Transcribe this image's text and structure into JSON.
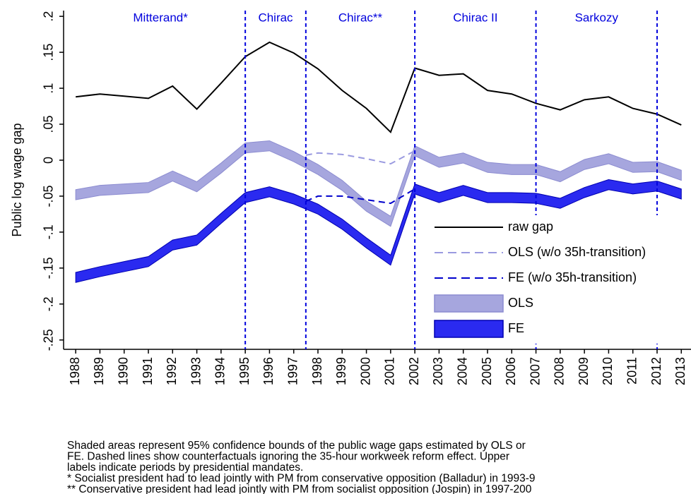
{
  "chart_data": {
    "type": "line",
    "y_label": "Public log wage gap",
    "x": [
      1988,
      1989,
      1990,
      1991,
      1992,
      1993,
      1994,
      1995,
      1996,
      1997,
      1998,
      1999,
      2000,
      2001,
      2002,
      2003,
      2004,
      2005,
      2006,
      2007,
      2008,
      2009,
      2010,
      2011,
      2012,
      2013
    ],
    "xlim": [
      1987.5,
      2013.4
    ],
    "xticks": [
      1988,
      1989,
      1990,
      1991,
      1992,
      1993,
      1994,
      1995,
      1996,
      1997,
      1998,
      1999,
      2000,
      2001,
      2002,
      2003,
      2004,
      2005,
      2006,
      2007,
      2008,
      2009,
      2010,
      2011,
      2012,
      2013
    ],
    "ylim": [
      -0.263,
      0.208
    ],
    "yticks": [
      {
        "value": 0.2,
        "label": ".2"
      },
      {
        "value": 0.15,
        "label": ".15"
      },
      {
        "value": 0.1,
        "label": ".1"
      },
      {
        "value": 0.05,
        "label": ".05"
      },
      0,
      {
        "value": -0.05,
        "label": "-.05"
      },
      {
        "value": -0.1,
        "label": "-.1"
      },
      {
        "value": -0.15,
        "label": "-.15"
      },
      {
        "value": -0.2,
        "label": "-.2"
      },
      {
        "value": -0.25,
        "label": "-.25"
      }
    ],
    "mandate_lines": [
      1995,
      1997.5,
      2002,
      2007,
      2012
    ],
    "mandates": [
      "Mitterand*",
      "Chirac",
      "Chirac**",
      "Chirac II",
      "Sarkozy"
    ],
    "mandate_color": "#0000dd",
    "series": [
      {
        "name": "OLS",
        "style": "band",
        "color": "#a6a6de",
        "edge": "#8c8cd0",
        "upper": [
          -0.041,
          -0.035,
          -0.033,
          -0.031,
          -0.015,
          -0.03,
          -0.004,
          0.024,
          0.027,
          0.012,
          -0.006,
          -0.028,
          -0.057,
          -0.078,
          0.02,
          0.004,
          0.01,
          -0.003,
          -0.006,
          -0.006,
          -0.016,
          0.001,
          0.009,
          -0.003,
          -0.002,
          -0.014
        ],
        "lower": [
          -0.055,
          -0.049,
          -0.047,
          -0.045,
          -0.029,
          -0.044,
          -0.018,
          0.01,
          0.013,
          -0.002,
          -0.02,
          -0.042,
          -0.071,
          -0.092,
          0.006,
          -0.01,
          -0.004,
          -0.017,
          -0.02,
          -0.02,
          -0.03,
          -0.013,
          -0.005,
          -0.017,
          -0.016,
          -0.028
        ]
      },
      {
        "name": "FE",
        "style": "band",
        "color": "#2a2af0",
        "edge": "#0000b0",
        "upper": [
          -0.156,
          -0.148,
          -0.141,
          -0.134,
          -0.111,
          -0.104,
          -0.074,
          -0.045,
          -0.037,
          -0.047,
          -0.061,
          -0.082,
          -0.108,
          -0.132,
          -0.033,
          -0.045,
          -0.035,
          -0.045,
          -0.045,
          -0.046,
          -0.053,
          -0.038,
          -0.027,
          -0.033,
          -0.029,
          -0.04
        ],
        "lower": [
          -0.17,
          -0.162,
          -0.155,
          -0.148,
          -0.125,
          -0.118,
          -0.088,
          -0.059,
          -0.051,
          -0.061,
          -0.075,
          -0.096,
          -0.122,
          -0.146,
          -0.047,
          -0.059,
          -0.049,
          -0.059,
          -0.059,
          -0.06,
          -0.067,
          -0.052,
          -0.041,
          -0.047,
          -0.043,
          -0.054
        ]
      },
      {
        "name": "OLS (w/o 35h-transition)",
        "style": "dashed",
        "color": "#9a9ae0",
        "x": [
          1997.5,
          1998,
          1999,
          2000,
          2001,
          2002
        ],
        "values": [
          0.007,
          0.01,
          0.008,
          0.002,
          -0.005,
          0.013
        ]
      },
      {
        "name": "FE (w/o 35h-transition)",
        "style": "dashed",
        "color": "#0000cc",
        "x": [
          1997.5,
          1998,
          1999,
          2000,
          2001,
          2002
        ],
        "values": [
          -0.057,
          -0.05,
          -0.05,
          -0.055,
          -0.06,
          -0.04
        ]
      },
      {
        "name": "raw gap",
        "style": "solid",
        "color": "#000000",
        "values": [
          0.088,
          0.092,
          0.089,
          0.086,
          0.103,
          0.071,
          0.107,
          0.144,
          0.164,
          0.149,
          0.127,
          0.097,
          0.072,
          0.039,
          0.128,
          0.118,
          0.12,
          0.097,
          0.092,
          0.079,
          0.07,
          0.084,
          0.088,
          0.072,
          0.064,
          0.049
        ]
      }
    ],
    "legend_order": [
      4,
      2,
      3,
      0,
      1
    ],
    "legend_position": "lower right",
    "notes": [
      "Shaded areas represent 95% confidence bounds of the public wage gaps estimated by OLS or",
      "FE. Dashed lines show counterfactuals ignoring the 35-hour workweek reform effect. Upper",
      "labels indicate periods by presidential mandates.",
      "* Socialist president had to lead jointly with PM from conservative opposition (Balladur) in 1993-9",
      "** Conservative president had lead jointly with PM from socialist opposition (Jospin) in 1997-200"
    ]
  }
}
